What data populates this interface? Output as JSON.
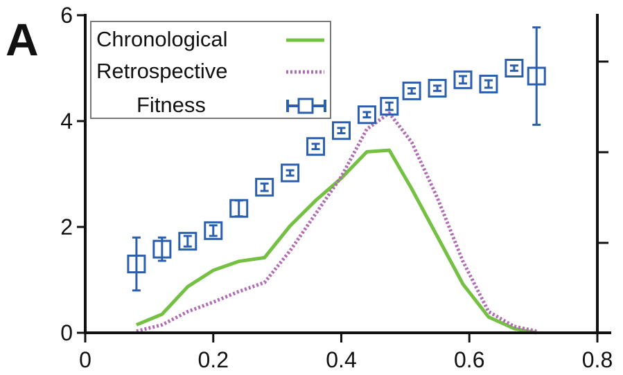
{
  "panel_label": "A",
  "colors": {
    "chronological": "#74c043",
    "retrospective": "#b06bb4",
    "fitness": "#2b5fad",
    "axis": "#111111",
    "legend_border": "#777777"
  },
  "chart_data": {
    "type": "line",
    "title": "",
    "xlabel": "",
    "ylabel": "",
    "xlim": [
      0,
      0.8
    ],
    "ylim": [
      0,
      6
    ],
    "grid": false,
    "legend_position": "top-left",
    "x_ticks": [
      "0",
      "0.2",
      "0.4",
      "0.6",
      "0.8"
    ],
    "y_ticks": [
      "0",
      "2",
      "4",
      "6"
    ],
    "right_axis_ticks_unlabeled": true,
    "series": [
      {
        "name": "Chronological",
        "style": "solid-line",
        "x": [
          0.08,
          0.12,
          0.16,
          0.2,
          0.24,
          0.28,
          0.32,
          0.36,
          0.4,
          0.44,
          0.475,
          0.51,
          0.55,
          0.59,
          0.63,
          0.67,
          0.705
        ],
        "y": [
          0.15,
          0.35,
          0.87,
          1.18,
          1.35,
          1.42,
          2.02,
          2.5,
          2.92,
          3.42,
          3.45,
          2.72,
          1.82,
          0.92,
          0.3,
          0.08,
          0.0
        ]
      },
      {
        "name": "Retrospective",
        "style": "dotted-line",
        "x": [
          0.08,
          0.12,
          0.16,
          0.2,
          0.24,
          0.28,
          0.32,
          0.36,
          0.4,
          0.44,
          0.475,
          0.51,
          0.55,
          0.59,
          0.63,
          0.67,
          0.705
        ],
        "y": [
          0.03,
          0.15,
          0.4,
          0.58,
          0.78,
          0.95,
          1.55,
          2.25,
          2.95,
          3.85,
          4.15,
          3.6,
          2.55,
          1.35,
          0.4,
          0.12,
          0.03
        ]
      },
      {
        "name": "Fitness",
        "style": "open-square-with-error-bars",
        "x": [
          0.08,
          0.12,
          0.16,
          0.2,
          0.24,
          0.28,
          0.32,
          0.36,
          0.4,
          0.44,
          0.475,
          0.51,
          0.55,
          0.59,
          0.63,
          0.67,
          0.705
        ],
        "y": [
          1.3,
          1.58,
          1.73,
          1.93,
          2.35,
          2.75,
          3.02,
          3.52,
          3.82,
          4.12,
          4.28,
          4.57,
          4.62,
          4.78,
          4.7,
          5.0,
          4.85
        ],
        "err": [
          0.5,
          0.22,
          0.1,
          0.1,
          0.15,
          0.07,
          0.05,
          0.05,
          0.05,
          0.05,
          0.07,
          0.05,
          0.05,
          0.07,
          0.07,
          0.05,
          0.92
        ]
      }
    ]
  }
}
